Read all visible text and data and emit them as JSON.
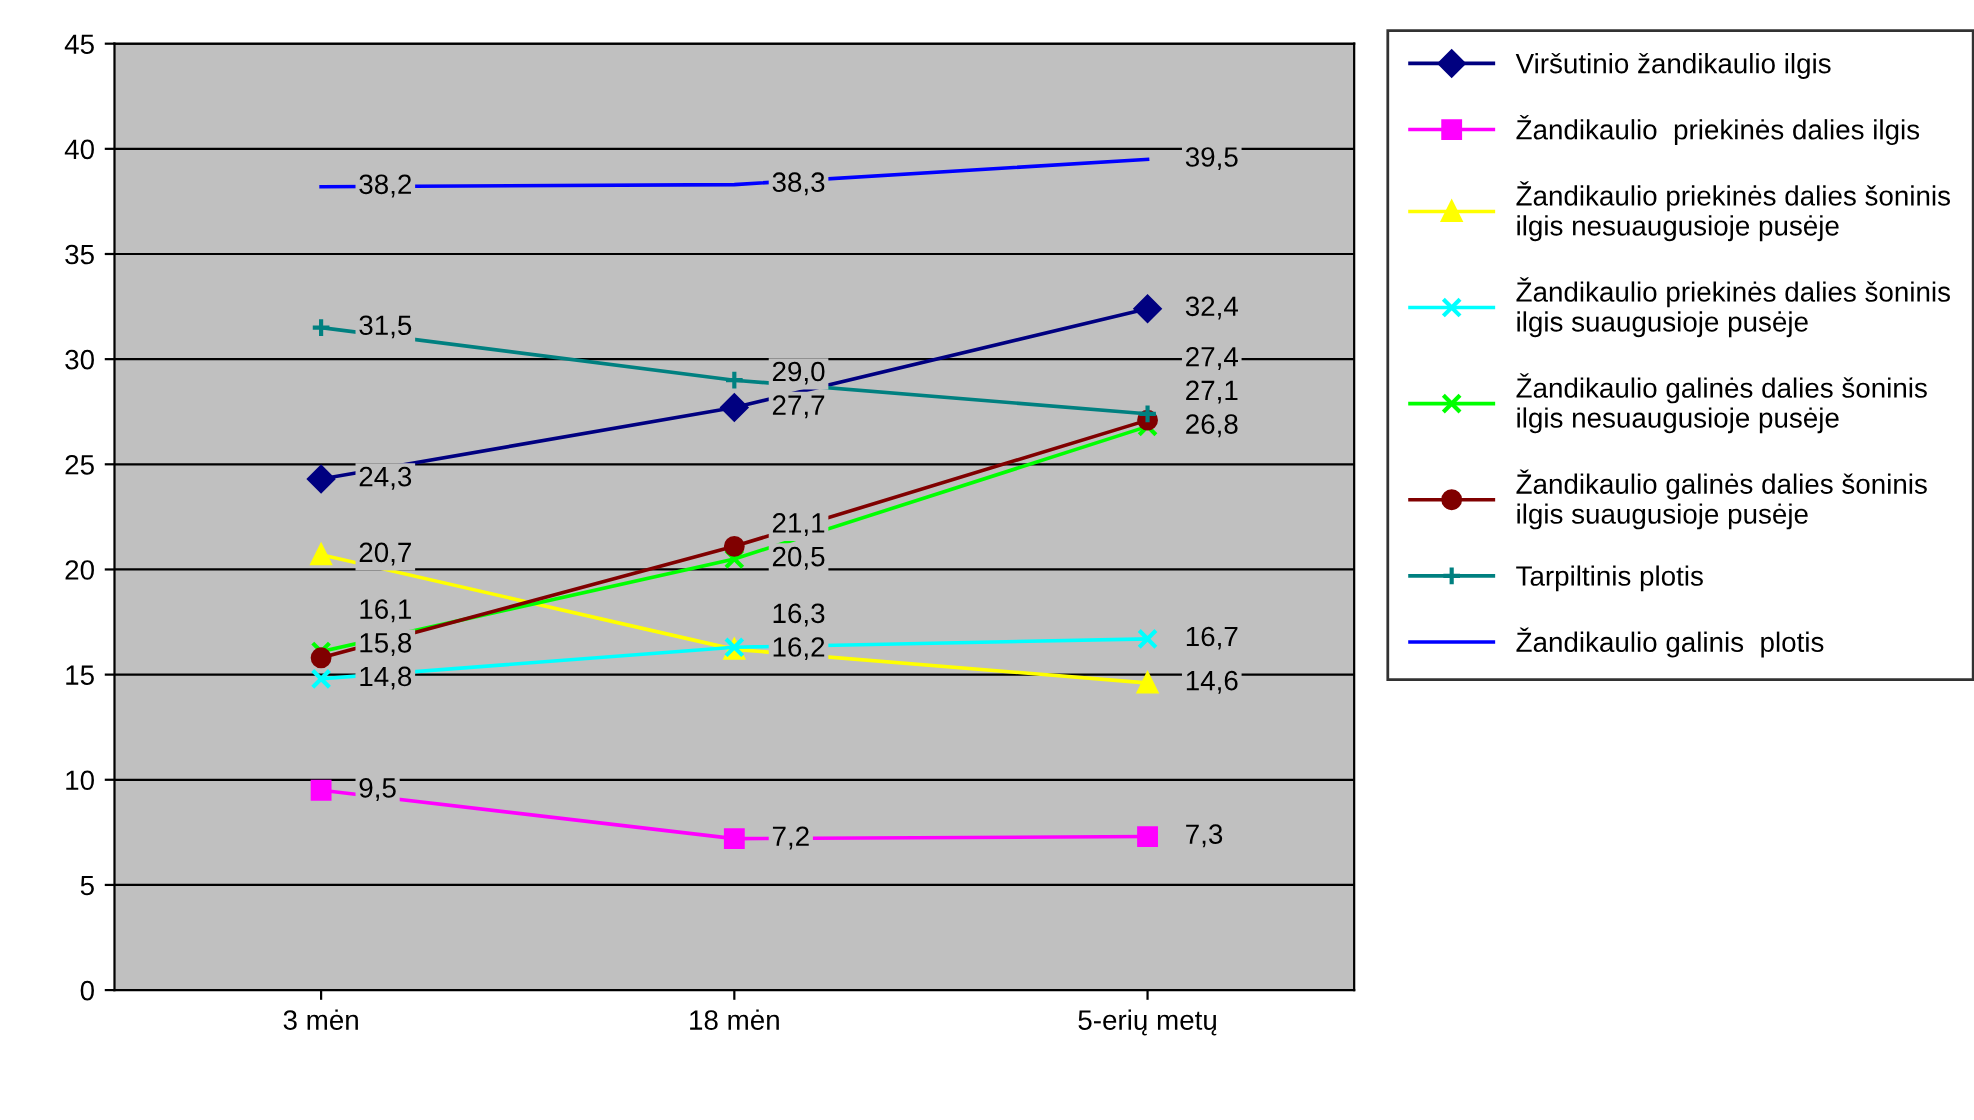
{
  "chart_data": {
    "type": "line",
    "categories": [
      "3 mėn",
      "18 mėn",
      "5-erių metų"
    ],
    "ylim": [
      0,
      45
    ],
    "yticks": [
      0,
      5,
      10,
      15,
      20,
      25,
      30,
      35,
      40,
      45
    ],
    "grid": "y",
    "legend": "right",
    "data_labels": true,
    "series": [
      {
        "name": "Viršutinio žandikaulio ilgis",
        "color": "#000080",
        "marker": "diamond",
        "values": [
          24.3,
          27.7,
          32.4
        ],
        "value_labels": [
          "24,3",
          "27,7",
          "32,4"
        ]
      },
      {
        "name": "Žandikaulio  priekinės dalies ilgis",
        "color": "#ff00ff",
        "marker": "square",
        "values": [
          9.5,
          7.2,
          7.3
        ],
        "value_labels": [
          "9,5",
          "7,2",
          "7,3"
        ]
      },
      {
        "name": "Žandikaulio priekinės dalies šoninis ilgis nesuaugusioje pusėje",
        "color": "#ffff00",
        "marker": "triangle",
        "values": [
          20.7,
          16.2,
          14.6
        ],
        "value_labels": [
          "20,7",
          "16,2",
          "14,6"
        ]
      },
      {
        "name": "Žandikaulio priekinės dalies šoninis ilgis suaugusioje pusėje",
        "color": "#00ffff",
        "marker": "cross",
        "values": [
          14.8,
          16.3,
          16.7
        ],
        "value_labels": [
          "14,8",
          "16,3",
          "16,7"
        ]
      },
      {
        "name": "Žandikaulio galinės dalies šoninis ilgis nesuaugusioje pusėje",
        "color": "#00ff00",
        "marker": "cross",
        "values": [
          16.1,
          20.5,
          26.8
        ],
        "value_labels": [
          "16,1",
          "20,5",
          "26,8"
        ]
      },
      {
        "name": "Žandikaulio galinės dalies šoninis ilgis suaugusioje pusėje",
        "color": "#800000",
        "marker": "circle",
        "values": [
          15.8,
          21.1,
          27.1
        ],
        "value_labels": [
          "15,8",
          "21,1",
          "27,1"
        ]
      },
      {
        "name": "Tarpiltinis plotis",
        "color": "#008080",
        "marker": "plus",
        "values": [
          31.5,
          29.0,
          27.4
        ],
        "value_labels": [
          "31,5",
          "29,0",
          "27,4"
        ]
      },
      {
        "name": "Žandikaulio galinis  plotis",
        "color": "#0000ff",
        "marker": "none",
        "values": [
          38.2,
          38.3,
          39.5
        ],
        "value_labels": [
          "38,2",
          "38,3",
          "39,5"
        ]
      }
    ]
  }
}
